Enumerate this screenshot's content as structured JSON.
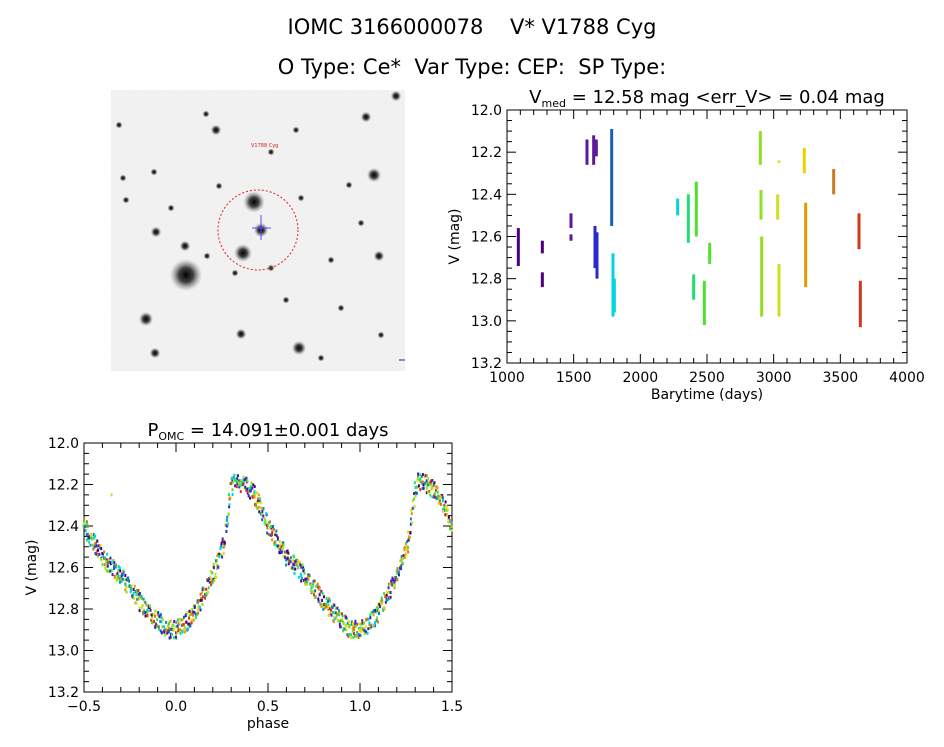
{
  "header": {
    "title_line1": "IOMC 3166000078    V* V1788 Cyg",
    "title_line2": "O Type: Ce*  Var Type: CEP:  SP Type:"
  },
  "image_panel": {
    "labels": [
      "V1788 Cyg"
    ]
  },
  "colors": {
    "palette": [
      "#4b0082",
      "#5a1a9a",
      "#2a2ad0",
      "#1560c0",
      "#0095b5",
      "#00d4e0",
      "#1ee070",
      "#52e030",
      "#8fe020",
      "#cde020",
      "#f0d000",
      "#e59a00",
      "#cc7a20",
      "#d03818"
    ]
  },
  "chart_data": [
    {
      "type": "scatter",
      "title": "V",
      "title_sub": "med",
      "title_rest": " = 12.58 mag <err_V> = 0.04 mag",
      "xlabel": "Barytime (days)",
      "ylabel": "V (mag)",
      "xlim": [
        1000,
        4000
      ],
      "ylim": [
        13.2,
        12.0
      ],
      "xticks": [
        1000,
        1500,
        2000,
        2500,
        3000,
        3500,
        4000
      ],
      "yticks": [
        12.0,
        12.2,
        12.4,
        12.6,
        12.8,
        13.0,
        13.2
      ],
      "xtick_labels": [
        "1000",
        "1500",
        "2000",
        "2500",
        "3000",
        "3500",
        "4000"
      ],
      "ytick_labels": [
        "12.0",
        "12.2",
        "12.4",
        "12.6",
        "12.8",
        "13.0",
        "13.2"
      ],
      "grid": false,
      "segments": [
        {
          "x": 1085,
          "ymin": 12.56,
          "ymax": 12.74,
          "color": "#4b0082"
        },
        {
          "x": 1265,
          "ymin": 12.62,
          "ymax": 12.68,
          "color": "#4b0082"
        },
        {
          "x": 1265,
          "ymin": 12.77,
          "ymax": 12.84,
          "color": "#4b0082"
        },
        {
          "x": 1480,
          "ymin": 12.49,
          "ymax": 12.56,
          "color": "#5a1a9a"
        },
        {
          "x": 1480,
          "ymin": 12.59,
          "ymax": 12.62,
          "color": "#5a1a9a"
        },
        {
          "x": 1600,
          "ymin": 12.14,
          "ymax": 12.26,
          "color": "#5a1a9a"
        },
        {
          "x": 1650,
          "ymin": 12.12,
          "ymax": 12.26,
          "color": "#5a1a9a"
        },
        {
          "x": 1660,
          "ymin": 12.55,
          "ymax": 12.75,
          "color": "#2a2ad0"
        },
        {
          "x": 1670,
          "ymin": 12.14,
          "ymax": 12.22,
          "color": "#5a1a9a"
        },
        {
          "x": 1675,
          "ymin": 12.58,
          "ymax": 12.8,
          "color": "#2a2ad0"
        },
        {
          "x": 1785,
          "ymin": 12.09,
          "ymax": 12.55,
          "color": "#1560c0"
        },
        {
          "x": 1795,
          "ymin": 12.68,
          "ymax": 12.98,
          "color": "#00d4e0"
        },
        {
          "x": 1805,
          "ymin": 12.8,
          "ymax": 12.96,
          "color": "#00d4e0"
        },
        {
          "x": 2280,
          "ymin": 12.42,
          "ymax": 12.5,
          "color": "#00d4e0"
        },
        {
          "x": 2360,
          "ymin": 12.4,
          "ymax": 12.63,
          "color": "#1ee070"
        },
        {
          "x": 2400,
          "ymin": 12.78,
          "ymax": 12.9,
          "color": "#1ee070"
        },
        {
          "x": 2420,
          "ymin": 12.34,
          "ymax": 12.6,
          "color": "#52e030"
        },
        {
          "x": 2480,
          "ymin": 12.81,
          "ymax": 13.02,
          "color": "#52e030"
        },
        {
          "x": 2520,
          "ymin": 12.63,
          "ymax": 12.73,
          "color": "#52e030"
        },
        {
          "x": 2900,
          "ymin": 12.1,
          "ymax": 12.26,
          "color": "#8fe020"
        },
        {
          "x": 2905,
          "ymin": 12.38,
          "ymax": 12.52,
          "color": "#8fe020"
        },
        {
          "x": 2910,
          "ymin": 12.6,
          "ymax": 12.98,
          "color": "#8fe020"
        },
        {
          "x": 3030,
          "ymin": 12.4,
          "ymax": 12.52,
          "color": "#cde020"
        },
        {
          "x": 3040,
          "ymin": 12.73,
          "ymax": 12.98,
          "color": "#cde020"
        },
        {
          "x": 3040,
          "ymin": 12.24,
          "ymax": 12.25,
          "color": "#cde020"
        },
        {
          "x": 3230,
          "ymin": 12.18,
          "ymax": 12.3,
          "color": "#f0d000"
        },
        {
          "x": 3240,
          "ymin": 12.44,
          "ymax": 12.84,
          "color": "#e59a00"
        },
        {
          "x": 3450,
          "ymin": 12.28,
          "ymax": 12.4,
          "color": "#cc7a20"
        },
        {
          "x": 3640,
          "ymin": 12.49,
          "ymax": 12.66,
          "color": "#d03818"
        },
        {
          "x": 3650,
          "ymin": 12.81,
          "ymax": 13.03,
          "color": "#d03818"
        }
      ]
    },
    {
      "type": "scatter",
      "title": "P",
      "title_sub": "OMC",
      "title_rest": " = 14.091±0.001 days",
      "xlabel": "phase",
      "ylabel": "V (mag)",
      "xlim": [
        -0.5,
        1.5
      ],
      "ylim": [
        13.2,
        12.0
      ],
      "xticks": [
        -0.5,
        0.0,
        0.5,
        1.0,
        1.5
      ],
      "yticks": [
        12.0,
        12.2,
        12.4,
        12.6,
        12.8,
        13.0,
        13.2
      ],
      "xtick_labels": [
        "−0.5",
        "0.0",
        "0.5",
        "1.0",
        "1.5"
      ],
      "ytick_labels": [
        "12.0",
        "12.2",
        "12.4",
        "12.6",
        "12.8",
        "13.0",
        "13.2"
      ],
      "grid": false,
      "curve_phase": [
        0.0,
        0.04,
        0.1,
        0.16,
        0.22,
        0.27,
        0.3,
        0.32,
        0.37,
        0.42,
        0.5,
        0.6,
        0.7,
        0.8,
        0.88,
        0.95,
        1.0
      ],
      "curve_mag": [
        12.9,
        12.88,
        12.82,
        12.72,
        12.6,
        12.45,
        12.22,
        12.18,
        12.2,
        12.24,
        12.4,
        12.55,
        12.64,
        12.76,
        12.84,
        12.9,
        12.9
      ],
      "scatter_width": 0.06,
      "outliers": [
        {
          "x": -0.35,
          "y": 12.25,
          "color": "#cde020"
        },
        {
          "x": 0.45,
          "y": 12.25,
          "color": "#e59a00"
        }
      ]
    }
  ]
}
